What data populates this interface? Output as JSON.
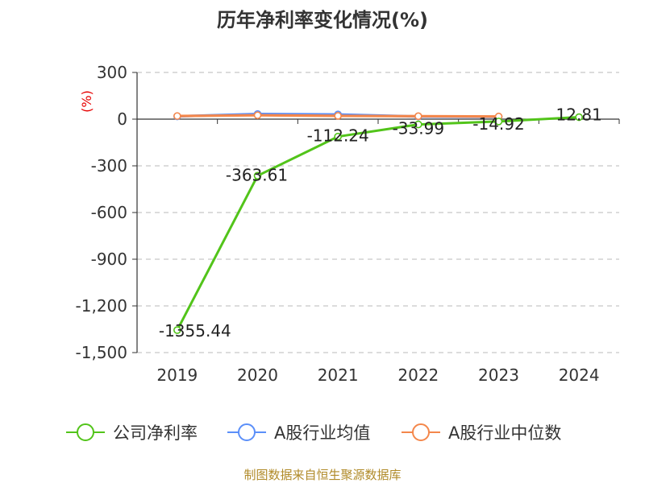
{
  "chart_data": {
    "type": "line",
    "title": "历年净利率变化情况(%)",
    "ylabel": "(%)",
    "xlabel": "",
    "categories": [
      "2019",
      "2020",
      "2021",
      "2022",
      "2023",
      "2024"
    ],
    "ylim": [
      -1500,
      300
    ],
    "yticks": [
      300,
      0,
      -300,
      -600,
      -900,
      -1200,
      -1500
    ],
    "ytick_labels": [
      "300",
      "0",
      "-300",
      "-600",
      "-900",
      "-1,200",
      "-1,500"
    ],
    "grid": true,
    "legend_position": "bottom",
    "series": [
      {
        "name": "公司净利率",
        "color": "#52c41a",
        "values": [
          -1355.44,
          -363.61,
          -112.24,
          -33.99,
          -14.92,
          12.81
        ],
        "labels": [
          "-1355.44",
          "-363.61",
          "-112.24",
          "-33.99",
          "-14.92",
          "12.81"
        ]
      },
      {
        "name": "A股行业均值",
        "color": "#5b8ff9",
        "values": [
          18,
          33,
          30,
          17,
          15,
          null
        ]
      },
      {
        "name": "A股行业中位数",
        "color": "#f4874b",
        "values": [
          20,
          25,
          21,
          19,
          17,
          null
        ]
      }
    ]
  },
  "source": "制图数据来自恒生聚源数据库"
}
